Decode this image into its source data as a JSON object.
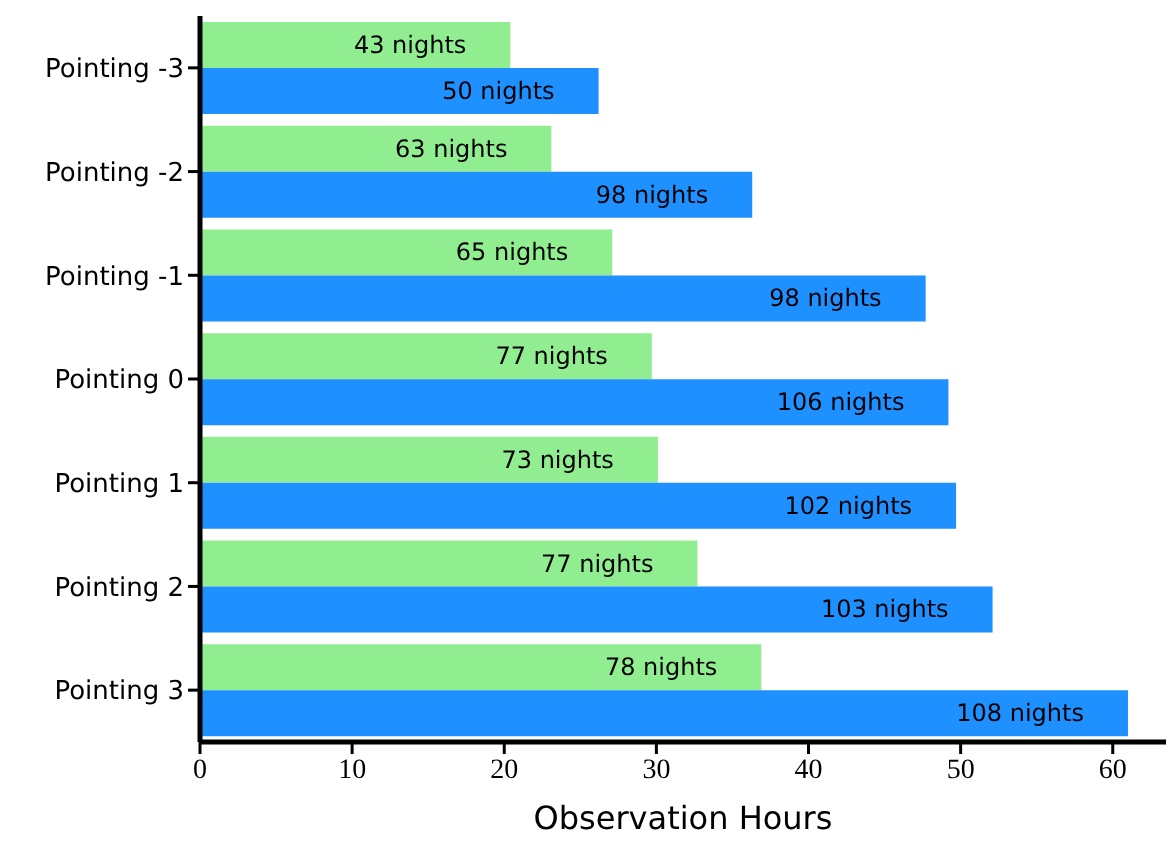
{
  "chart_data": {
    "type": "bar",
    "orientation": "horizontal",
    "xlabel": "Observation Hours",
    "categories": [
      "Pointing -3",
      "Pointing -2",
      "Pointing -1",
      "Pointing 0",
      "Pointing 1",
      "Pointing 2",
      "Pointing 3"
    ],
    "series": [
      {
        "color": "#90ee90",
        "values": [
          20.4,
          23.1,
          27.1,
          29.7,
          30.1,
          32.7,
          36.9
        ]
      },
      {
        "color": "#1e90ff",
        "values": [
          26.2,
          36.3,
          47.7,
          49.2,
          49.7,
          52.1,
          61.0
        ]
      }
    ],
    "annotations": [
      {
        "text": "43 nights",
        "x": 20.4,
        "y": "Pointing -3"
      },
      {
        "text": "63 nights",
        "x": 23.1,
        "y": "Pointing -2"
      },
      {
        "text": "65 nights",
        "x": 27.1,
        "y": "Pointing -1"
      },
      {
        "text": "77 nights",
        "x": 29.7,
        "y": "Pointing 0"
      },
      {
        "text": "73 nights",
        "x": 30.1,
        "y": "Pointing 1"
      },
      {
        "text": "77 nights",
        "x": 32.7,
        "y": "Pointing 2"
      },
      {
        "text": "78 nights",
        "x": 36.9,
        "y": "Pointing 3"
      },
      {
        "text": "50 nights",
        "x": 26.2,
        "y": "Pointing -3"
      },
      {
        "text": "98 nights",
        "x": 36.3,
        "y": "Pointing -2"
      },
      {
        "text": "98 nights",
        "x": 47.7,
        "y": "Pointing -1"
      },
      {
        "text": "106 nights",
        "x": 49.2,
        "y": "Pointing 0"
      },
      {
        "text": "102 nights",
        "x": 49.7,
        "y": "Pointing 1"
      },
      {
        "text": "103 nights",
        "x": 52.1,
        "y": "Pointing 2"
      },
      {
        "text": "108 nights",
        "x": 61.0,
        "y": "Pointing 3"
      }
    ],
    "xlim": [
      0,
      63.5
    ],
    "xticks": [
      0,
      10,
      20,
      30,
      40,
      50,
      60
    ],
    "grid": false,
    "legend": false
  }
}
